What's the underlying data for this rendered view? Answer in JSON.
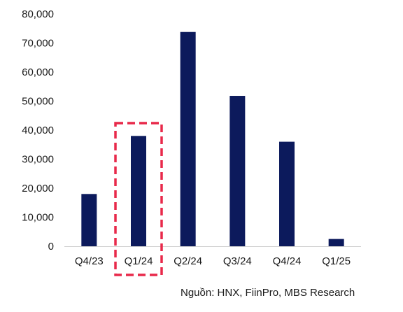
{
  "chart_data": {
    "type": "bar",
    "title": "",
    "xlabel": "",
    "ylabel": "",
    "categories": [
      "Q4/23",
      "Q1/24",
      "Q2/24",
      "Q3/24",
      "Q4/24",
      "Q1/25"
    ],
    "values": [
      18000,
      38000,
      73800,
      51800,
      36000,
      2500
    ],
    "ylim": [
      0,
      80000
    ],
    "yticks": [
      "0",
      "10,000",
      "20,000",
      "30,000",
      "40,000",
      "50,000",
      "60,000",
      "70,000",
      "80,000"
    ],
    "grid": false,
    "bar_color": "#0c1a5c",
    "highlight": {
      "category": "Q1/24",
      "style": "dashed-box",
      "color": "#e8294a"
    }
  },
  "source": "Nguồn: HNX, FiinPro, MBS Research"
}
